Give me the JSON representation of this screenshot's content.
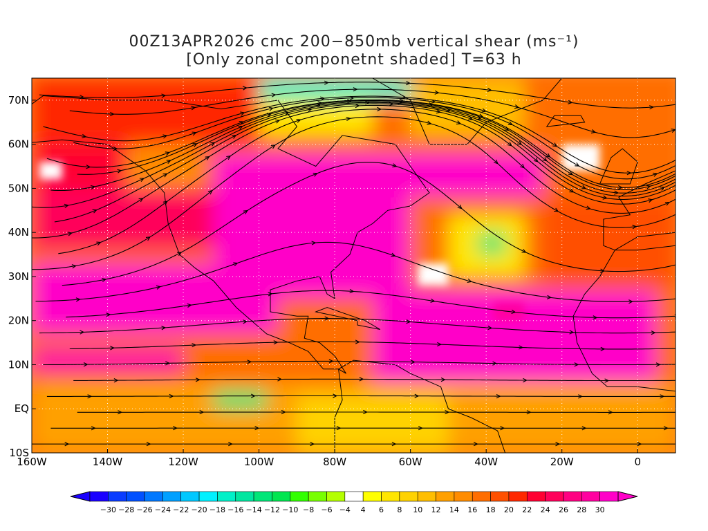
{
  "title": {
    "line1": "00Z13APR2026 cmc 200−850mb vertical shear (ms⁻¹)",
    "line2": "[Only zonal componetnt shaded] T=63 h"
  },
  "chart_data": {
    "type": "heatmap",
    "title": "00Z13APR2026 cmc 200−850mb vertical shear (ms⁻¹) [Only zonal componetnt shaded] T=63 h",
    "xlim": [
      -160,
      10
    ],
    "ylim": [
      -10,
      75
    ],
    "lat_ticks": [
      {
        "value": 70,
        "label": "70N"
      },
      {
        "value": 60,
        "label": "60N"
      },
      {
        "value": 50,
        "label": "50N"
      },
      {
        "value": 40,
        "label": "40N"
      },
      {
        "value": 30,
        "label": "30N"
      },
      {
        "value": 20,
        "label": "20N"
      },
      {
        "value": 10,
        "label": "10N"
      },
      {
        "value": 0,
        "label": "EQ"
      },
      {
        "value": -10,
        "label": "10S"
      }
    ],
    "lon_ticks": [
      {
        "value": -160,
        "label": "160W"
      },
      {
        "value": -140,
        "label": "140W"
      },
      {
        "value": -120,
        "label": "120W"
      },
      {
        "value": -100,
        "label": "100W"
      },
      {
        "value": -80,
        "label": "80W"
      },
      {
        "value": -60,
        "label": "60W"
      },
      {
        "value": -40,
        "label": "40W"
      },
      {
        "value": -20,
        "label": "20W"
      },
      {
        "value": 0,
        "label": "0"
      }
    ],
    "grid": true,
    "grid_style": "dotted",
    "colorbar": {
      "placement": "bottom",
      "labels": [
        "−30",
        "−28",
        "−26",
        "−24",
        "−22",
        "−20",
        "−18",
        "−16",
        "−14",
        "−12",
        "−10",
        "−8",
        "−6",
        "−4",
        "4",
        "6",
        "8",
        "10",
        "12",
        "14",
        "16",
        "18",
        "20",
        "22",
        "24",
        "26",
        "28",
        "30"
      ],
      "colors": [
        "#1a00ff",
        "#0a3cff",
        "#0050ff",
        "#0078ff",
        "#00a0ff",
        "#00c8ff",
        "#00f0ff",
        "#00f0c8",
        "#00e6a0",
        "#00e678",
        "#00e650",
        "#32ff00",
        "#78ff00",
        "#b4ff00",
        "#ffffff",
        "#ffff00",
        "#ffe600",
        "#ffd200",
        "#ffbe00",
        "#ffa000",
        "#ff8c00",
        "#ff6e00",
        "#ff5000",
        "#ff2800",
        "#ff0032",
        "#ff005a",
        "#ff0082",
        "#ff00a0",
        "#ff00c8"
      ]
    },
    "shading_regions": [
      {
        "name": "strong-jet-pacific-subtropics",
        "value": 30,
        "lon": [
          -160,
          -95
        ],
        "lat": [
          17,
          33
        ]
      },
      {
        "name": "strong-jet-north-america",
        "value": 30,
        "lon": [
          -112,
          -60
        ],
        "lat": [
          25,
          58
        ]
      },
      {
        "name": "strong-jet-atlantic-tropics",
        "value": 30,
        "lon": [
          -70,
          5
        ],
        "lat": [
          6,
          27
        ]
      },
      {
        "name": "strong-jet-north-atlantic",
        "value": 30,
        "lon": [
          -60,
          -25
        ],
        "lat": [
          48,
          58
        ]
      },
      {
        "name": "strong-jet-west-pacific-band",
        "value": 28,
        "lon": [
          -160,
          -120
        ],
        "lat": [
          8,
          14
        ]
      },
      {
        "name": "negative-shear-azores",
        "value": -12,
        "lon": [
          -42,
          -35
        ],
        "lat": [
          35,
          40
        ]
      },
      {
        "name": "negative-shear-east-pacific",
        "value": -12,
        "lon": [
          -112,
          -98
        ],
        "lat": [
          0,
          4
        ]
      },
      {
        "name": "negative-shear-arctic",
        "value": -16,
        "lon": [
          -100,
          -60
        ],
        "lat": [
          70,
          75
        ]
      }
    ]
  }
}
